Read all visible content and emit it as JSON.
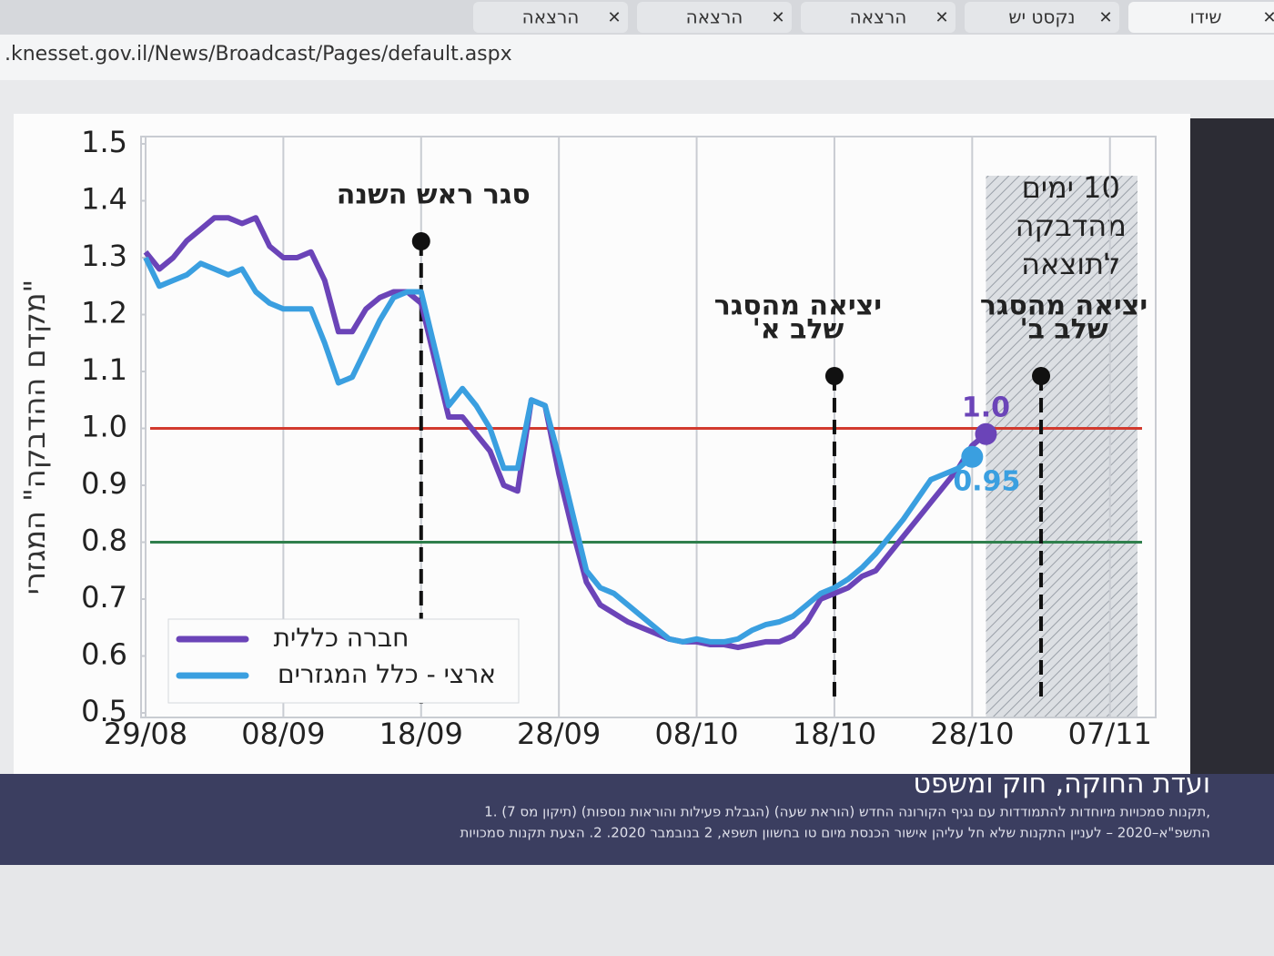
{
  "browser": {
    "tabs": [
      "הרצאה",
      "הרצאה",
      "הרצאה",
      "נקסט יש",
      "שידו"
    ],
    "url": ".knesset.gov.il/News/Broadcast/Pages/default.aspx"
  },
  "footer": {
    "title": "ועדת החוקה, חוק ומשפט",
    "lines": [
      "1. תקנות סמכויות מיוחדות להתמודדות עם נגיף הקורונה החדש (הוראת שעה) (הגבלת פעילות והוראות נוספות) (תיקון מס 7),",
      "התשפ\"א–2020 – לעניין התקנות שלא חל עליהן אישור הכנסת מיום טו בחשוון תשפא, 2 בנובמבר 2020. 2. הצעת תקנות סמכויות"
    ]
  },
  "chart_data": {
    "type": "line",
    "y_label": "\"מקדם ההדבקה\" המגזרי",
    "x": [
      "29/08",
      "30/08",
      "31/08",
      "01/09",
      "02/09",
      "03/09",
      "04/09",
      "05/09",
      "06/09",
      "07/09",
      "08/09",
      "09/09",
      "10/09",
      "11/09",
      "12/09",
      "13/09",
      "14/09",
      "15/09",
      "16/09",
      "17/09",
      "18/09",
      "19/09",
      "20/09",
      "21/09",
      "22/09",
      "23/09",
      "24/09",
      "25/09",
      "26/09",
      "27/09",
      "28/09",
      "29/09",
      "30/09",
      "01/10",
      "02/10",
      "03/10",
      "04/10",
      "05/10",
      "06/10",
      "07/10",
      "08/10",
      "09/10",
      "10/10",
      "11/10",
      "12/10",
      "13/10",
      "14/10",
      "15/10",
      "16/10",
      "17/10",
      "18/10",
      "19/10",
      "20/10",
      "21/10",
      "22/10",
      "23/10",
      "24/10",
      "25/10",
      "26/10",
      "27/10",
      "28/10",
      "29/10"
    ],
    "series": [
      {
        "name": "חברה כללית",
        "color": "#6b44b8",
        "end_label": "1.0",
        "values": [
          1.31,
          1.28,
          1.3,
          1.33,
          1.35,
          1.37,
          1.37,
          1.36,
          1.37,
          1.32,
          1.3,
          1.3,
          1.31,
          1.26,
          1.17,
          1.17,
          1.21,
          1.23,
          1.24,
          1.24,
          1.22,
          1.12,
          1.02,
          1.02,
          0.99,
          0.96,
          0.9,
          0.89,
          1.05,
          1.04,
          0.92,
          0.82,
          0.73,
          0.69,
          0.675,
          0.66,
          0.65,
          0.64,
          0.63,
          0.625,
          0.625,
          0.62,
          0.62,
          0.615,
          0.62,
          0.625,
          0.625,
          0.635,
          0.66,
          0.7,
          0.71,
          0.72,
          0.74,
          0.75,
          0.78,
          0.81,
          0.84,
          0.87,
          0.9,
          0.93,
          0.97,
          0.99
        ]
      },
      {
        "name": "ארצי - כלל המגזרים",
        "color": "#3a9fe0",
        "end_label": "0.95",
        "values": [
          1.3,
          1.25,
          1.26,
          1.27,
          1.29,
          1.28,
          1.27,
          1.28,
          1.24,
          1.22,
          1.21,
          1.21,
          1.21,
          1.15,
          1.08,
          1.09,
          1.14,
          1.19,
          1.23,
          1.24,
          1.24,
          1.14,
          1.04,
          1.07,
          1.04,
          1.0,
          0.93,
          0.93,
          1.05,
          1.04,
          0.95,
          0.85,
          0.75,
          0.72,
          0.71,
          0.69,
          0.67,
          0.65,
          0.63,
          0.625,
          0.63,
          0.625,
          0.625,
          0.63,
          0.645,
          0.655,
          0.66,
          0.67,
          0.69,
          0.71,
          0.72,
          0.735,
          0.755,
          0.78,
          0.81,
          0.84,
          0.875,
          0.91,
          0.92,
          0.93,
          0.95,
          null
        ]
      }
    ],
    "xlim": [
      "29/08",
      "09/11"
    ],
    "xticks": [
      "29/08",
      "08/09",
      "18/09",
      "28/09",
      "08/10",
      "18/10",
      "28/10",
      "07/11"
    ],
    "ylim": [
      0.5,
      1.5
    ],
    "yticks": [
      0.5,
      0.6,
      0.7,
      0.8,
      0.9,
      {
        "value": 1,
        "label": "1.0"
      },
      1.1,
      1.2,
      1.3,
      1.4,
      1.5
    ],
    "grid": "x",
    "legend": "bottom-left",
    "reference_lines": [
      {
        "y": 1,
        "color": "#d23a2e"
      },
      {
        "y": 0.8,
        "color": "#2f7f4c"
      }
    ],
    "markers": [
      {
        "x": "18/09",
        "label": [
          "סגר ראש השנה"
        ]
      },
      {
        "x": "18/10",
        "label": [
          "יציאה מהסגר",
          "שלב א'"
        ]
      },
      {
        "x": "02/11",
        "label": [
          "יציאה מהסגר",
          "שלב ב'"
        ]
      }
    ],
    "shaded_region": {
      "x": [
        "29/10",
        "09/11"
      ],
      "label": [
        "10 ימים",
        "מהדבקה",
        "לתוצאה"
      ]
    }
  }
}
